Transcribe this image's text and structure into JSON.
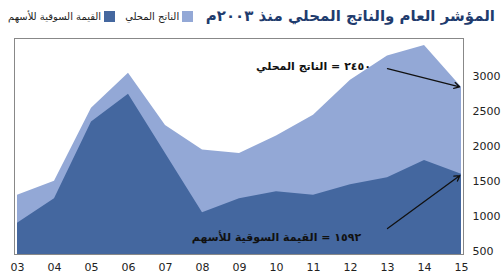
{
  "chart_data": {
    "type": "area",
    "title": "المؤشر العام والناتج المحلي منذ ٢٠٠٣م",
    "categories": [
      "03",
      "04",
      "05",
      "06",
      "07",
      "08",
      "09",
      "10",
      "11",
      "12",
      "13",
      "14",
      "15"
    ],
    "series": [
      {
        "name": "الناتج المحلي",
        "color": "#93a8d6",
        "values": [
          1300,
          1500,
          2550,
          3050,
          2300,
          1950,
          1900,
          2150,
          2450,
          2950,
          3300,
          3450,
          2850
        ]
      },
      {
        "name": "القيمة السوقية للأسهم",
        "color": "#44679f",
        "values": [
          900,
          1250,
          2350,
          2750,
          1900,
          1050,
          1250,
          1350,
          1300,
          1450,
          1550,
          1800,
          1600
        ]
      }
    ],
    "annotations": [
      {
        "text": "٢٤٥٠ = الناتج المحلي",
        "series": "الناتج المحلي"
      },
      {
        "text": "١٥٩٢ = القيمة السوقية للأسهم",
        "series": "القيمة السوقية للأسهم"
      }
    ],
    "ylim": [
      450,
      3550
    ],
    "yticks": [
      500,
      1000,
      1500,
      2000,
      2500,
      3000
    ],
    "legend": "top",
    "grid": false
  }
}
